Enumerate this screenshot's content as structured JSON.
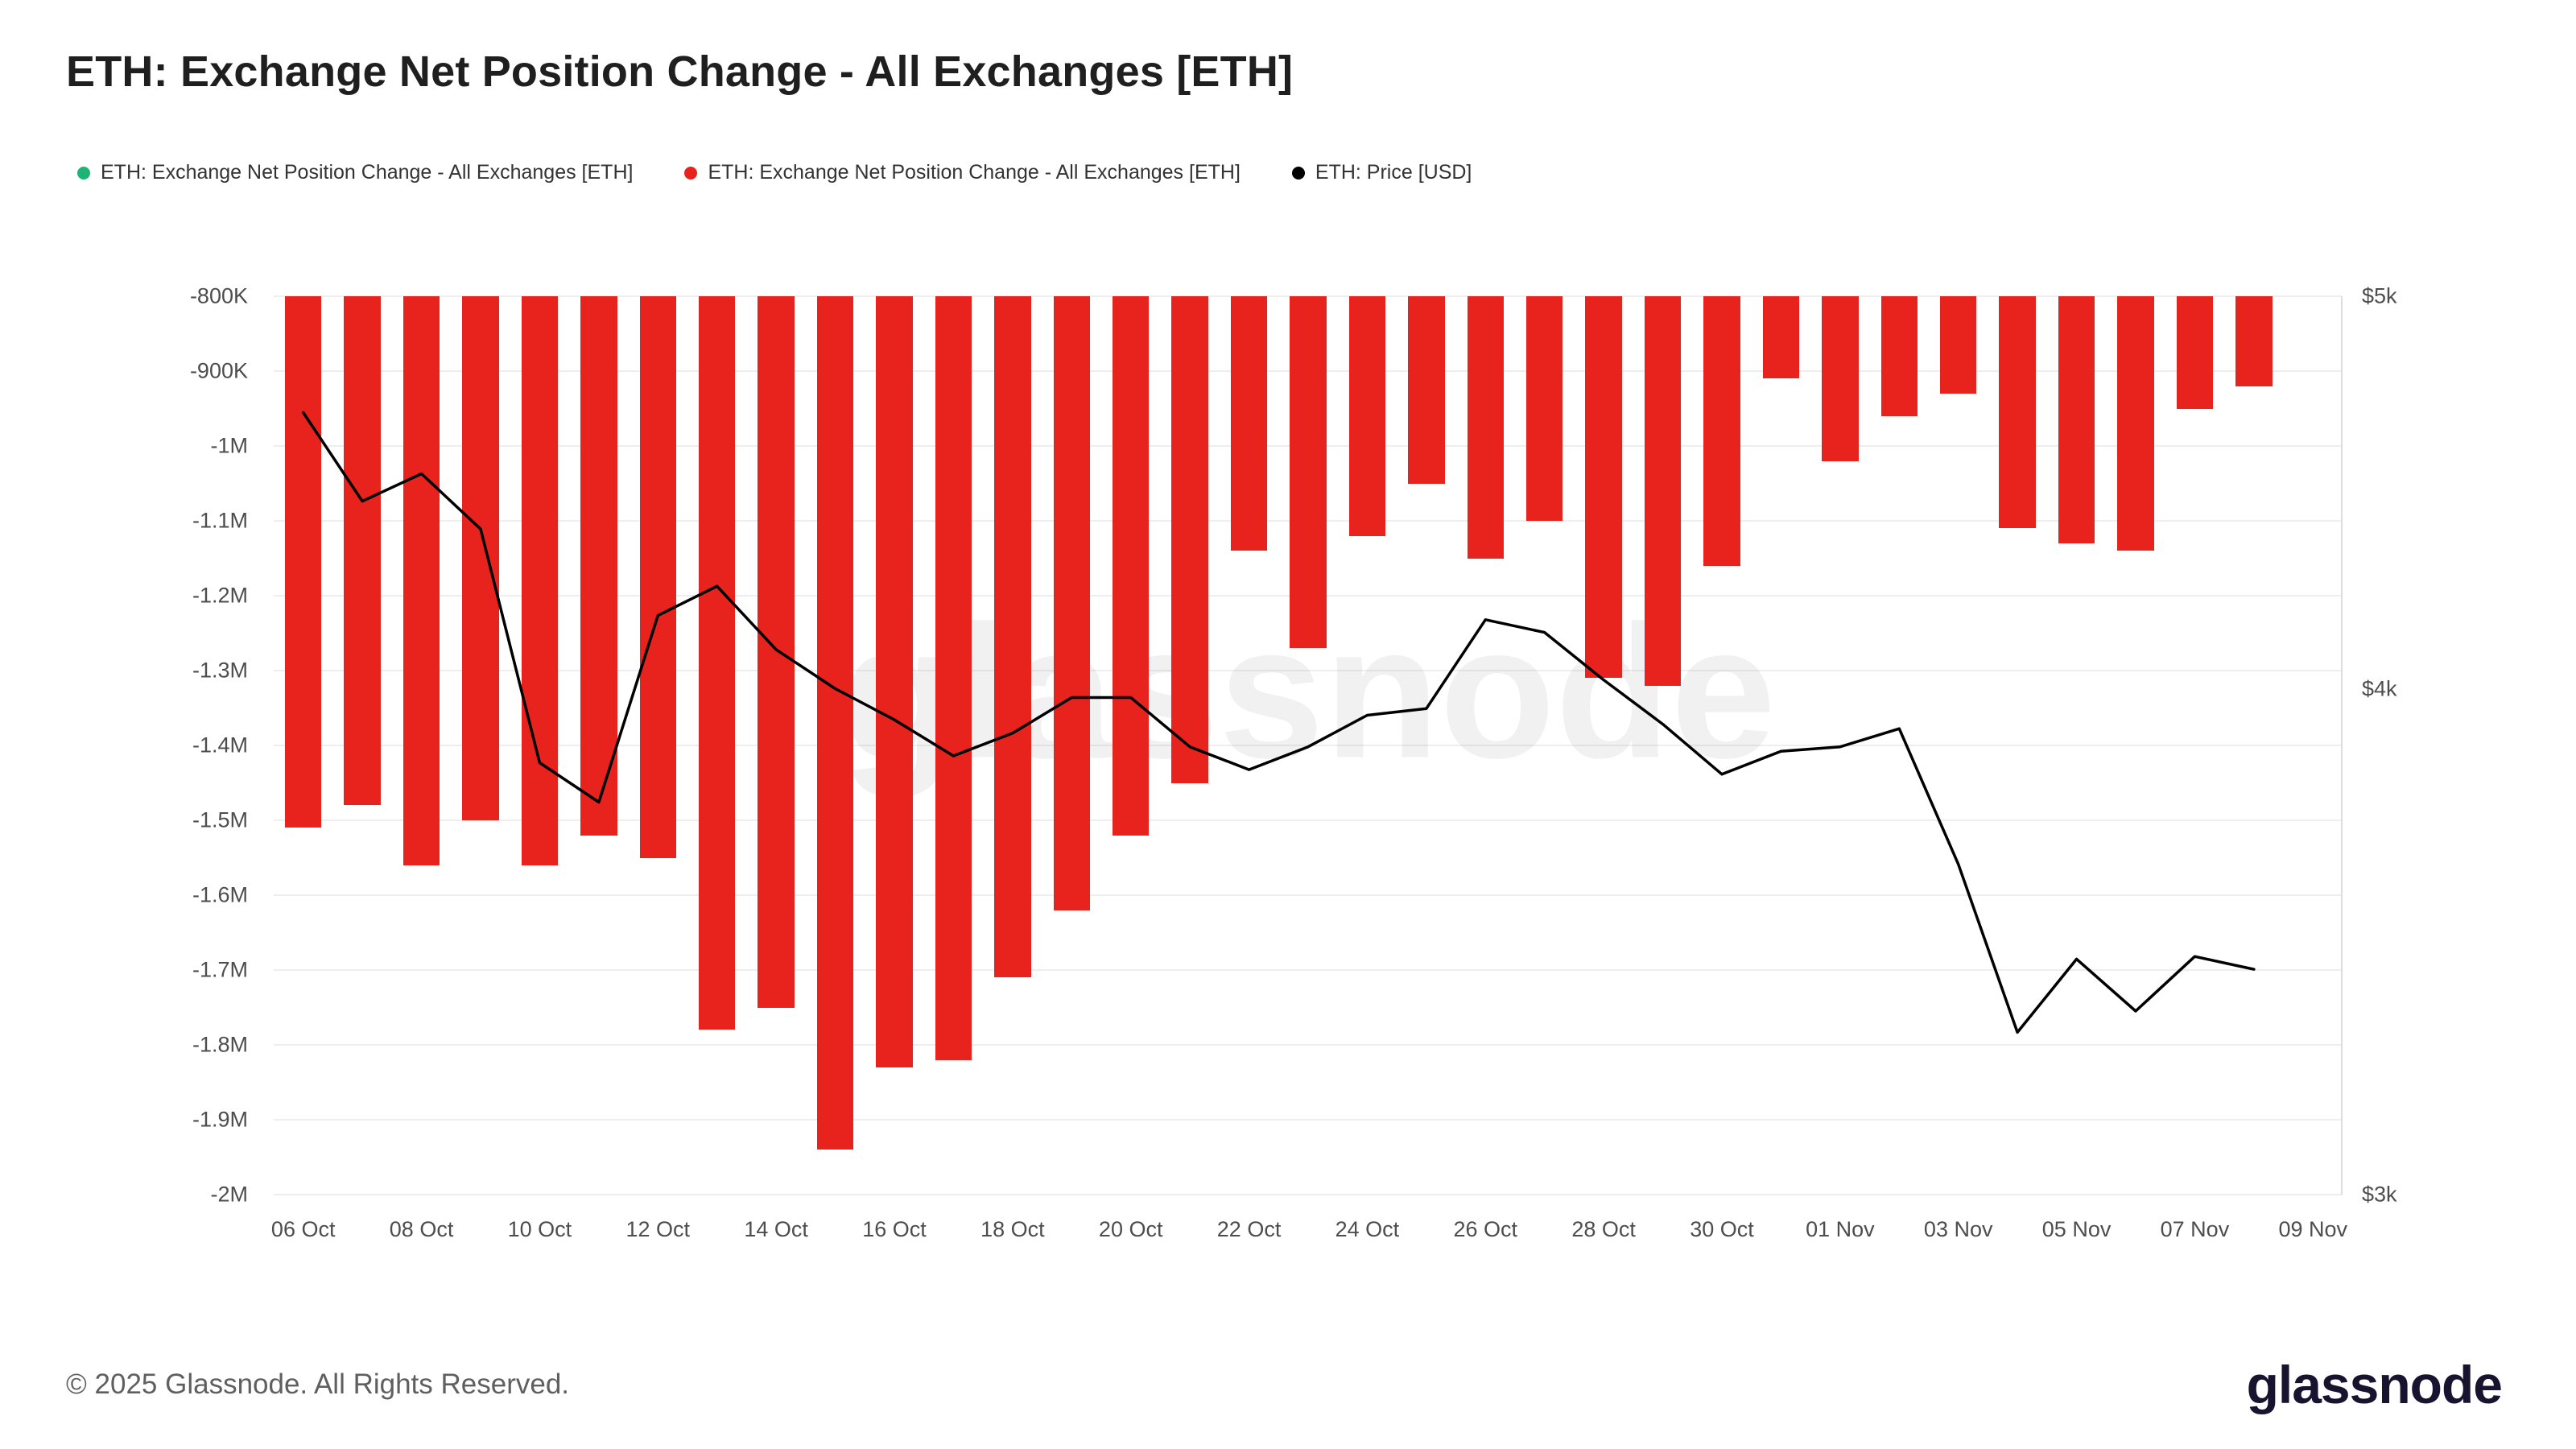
{
  "header": {
    "title": "ETH: Exchange Net Position Change - All Exchanges [ETH]"
  },
  "legend": [
    {
      "label": "ETH: Exchange Net Position Change - All Exchanges [ETH]",
      "color": "#1db576"
    },
    {
      "label": "ETH: Exchange Net Position Change - All Exchanges [ETH]",
      "color": "#e8231d"
    },
    {
      "label": "ETH: Price [USD]",
      "color": "#000000"
    }
  ],
  "watermark": "glassnode",
  "footer": {
    "copyright": "© 2025 Glassnode. All Rights Reserved.",
    "brand": "glassnode"
  },
  "chart_data": {
    "type": "bar",
    "title": "ETH: Exchange Net Position Change - All Exchanges [ETH]",
    "grid": true,
    "legend_position": "top",
    "x": [
      "2025-10-06",
      "2025-10-07",
      "2025-10-08",
      "2025-10-09",
      "2025-10-10",
      "2025-10-11",
      "2025-10-12",
      "2025-10-13",
      "2025-10-14",
      "2025-10-15",
      "2025-10-16",
      "2025-10-17",
      "2025-10-18",
      "2025-10-19",
      "2025-10-20",
      "2025-10-21",
      "2025-10-22",
      "2025-10-23",
      "2025-10-24",
      "2025-10-25",
      "2025-10-26",
      "2025-10-27",
      "2025-10-28",
      "2025-10-29",
      "2025-10-30",
      "2025-10-31",
      "2025-11-01",
      "2025-11-02",
      "2025-11-03",
      "2025-11-04",
      "2025-11-05",
      "2025-11-06",
      "2025-11-07",
      "2025-11-08"
    ],
    "x_ticks": [
      "06 Oct",
      "08 Oct",
      "10 Oct",
      "12 Oct",
      "14 Oct",
      "16 Oct",
      "18 Oct",
      "20 Oct",
      "22 Oct",
      "24 Oct",
      "26 Oct",
      "28 Oct",
      "30 Oct",
      "01 Nov",
      "03 Nov",
      "05 Nov",
      "07 Nov",
      "09 Nov"
    ],
    "series": [
      {
        "name": "ETH: Exchange Net Position Change - All Exchanges [ETH]",
        "type": "bar",
        "axis": "left",
        "color": "#e8231d",
        "values": [
          -1510000,
          -1480000,
          -1560000,
          -1500000,
          -1560000,
          -1520000,
          -1550000,
          -1780000,
          -1750000,
          -1940000,
          -1830000,
          -1820000,
          -1710000,
          -1620000,
          -1520000,
          -1450000,
          -1140000,
          -1270000,
          -1120000,
          -1050000,
          -1150000,
          -1100000,
          -1310000,
          -1320000,
          -1160000,
          -910000,
          -1020000,
          -960000,
          -930000,
          -1110000,
          -1130000,
          -1140000,
          -950000,
          -920000
        ]
      },
      {
        "name": "ETH: Price [USD]",
        "type": "line",
        "axis": "right",
        "color": "#000000",
        "values": [
          4680,
          4450,
          4520,
          4380,
          3835,
          3750,
          4170,
          4240,
          4090,
          4000,
          3930,
          3850,
          3900,
          3980,
          3980,
          3870,
          3820,
          3870,
          3940,
          3955,
          4160,
          4130,
          4020,
          3920,
          3810,
          3860,
          3870,
          3910,
          3620,
          3290,
          3430,
          3330,
          3435,
          3410
        ]
      }
    ],
    "left_axis": {
      "min": -2000000,
      "max": -800000,
      "scale": "linear",
      "ticks": [
        "-800K",
        "-900K",
        "-1M",
        "-1.1M",
        "-1.2M",
        "-1.3M",
        "-1.4M",
        "-1.5M",
        "-1.6M",
        "-1.7M",
        "-1.8M",
        "-1.9M",
        "-2M"
      ]
    },
    "right_axis": {
      "min": 3000,
      "max": 5000,
      "scale": "log",
      "ticks": [
        {
          "label": "$5k",
          "value": 5000
        },
        {
          "label": "$4k",
          "value": 4000
        },
        {
          "label": "$3k",
          "value": 3000
        }
      ]
    }
  }
}
